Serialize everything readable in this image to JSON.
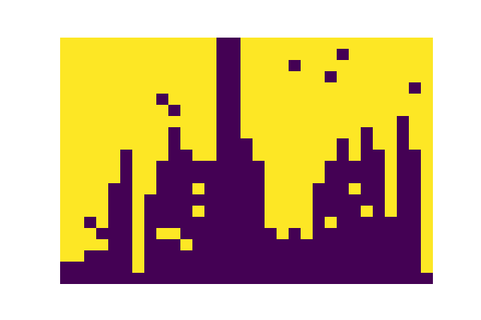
{
  "chart_data": {
    "type": "heatmap",
    "color": "Viridis",
    "tick_labels": false,
    "grid": false,
    "cells": [
      [
        1,
        1,
        1,
        1,
        1,
        1,
        1,
        1,
        1,
        1,
        1,
        1,
        1,
        0,
        0,
        1,
        1,
        1,
        1,
        1,
        1,
        1,
        1,
        1,
        1,
        1,
        1,
        1,
        1,
        1,
        1
      ],
      [
        1,
        1,
        1,
        1,
        1,
        1,
        1,
        1,
        1,
        1,
        1,
        1,
        1,
        0,
        0,
        1,
        1,
        1,
        1,
        1,
        1,
        1,
        1,
        0,
        1,
        1,
        1,
        1,
        1,
        1,
        1
      ],
      [
        1,
        1,
        1,
        1,
        1,
        1,
        1,
        1,
        1,
        1,
        1,
        1,
        1,
        0,
        0,
        1,
        1,
        1,
        1,
        0,
        1,
        1,
        1,
        1,
        1,
        1,
        1,
        1,
        1,
        1,
        1
      ],
      [
        1,
        1,
        1,
        1,
        1,
        1,
        1,
        1,
        1,
        1,
        1,
        1,
        1,
        0,
        0,
        1,
        1,
        1,
        1,
        1,
        1,
        1,
        0,
        1,
        1,
        1,
        1,
        1,
        1,
        1,
        1
      ],
      [
        1,
        1,
        1,
        1,
        1,
        1,
        1,
        1,
        1,
        1,
        1,
        1,
        1,
        0,
        0,
        1,
        1,
        1,
        1,
        1,
        1,
        1,
        1,
        1,
        1,
        1,
        1,
        1,
        1,
        0,
        1
      ],
      [
        1,
        1,
        1,
        1,
        1,
        1,
        1,
        1,
        0,
        1,
        1,
        1,
        1,
        0,
        0,
        1,
        1,
        1,
        1,
        1,
        1,
        1,
        1,
        1,
        1,
        1,
        1,
        1,
        1,
        1,
        1
      ],
      [
        1,
        1,
        1,
        1,
        1,
        1,
        1,
        1,
        1,
        0,
        1,
        1,
        1,
        0,
        0,
        1,
        1,
        1,
        1,
        1,
        1,
        1,
        1,
        1,
        1,
        1,
        1,
        1,
        1,
        1,
        1
      ],
      [
        1,
        1,
        1,
        1,
        1,
        1,
        1,
        1,
        1,
        1,
        1,
        1,
        1,
        0,
        0,
        1,
        1,
        1,
        1,
        1,
        1,
        1,
        1,
        1,
        1,
        1,
        1,
        1,
        0,
        1,
        1
      ],
      [
        1,
        1,
        1,
        1,
        1,
        1,
        1,
        1,
        1,
        0,
        1,
        1,
        1,
        0,
        0,
        1,
        1,
        1,
        1,
        1,
        1,
        1,
        1,
        1,
        1,
        0,
        1,
        1,
        0,
        1,
        1
      ],
      [
        1,
        1,
        1,
        1,
        1,
        1,
        1,
        1,
        1,
        0,
        1,
        1,
        1,
        0,
        0,
        0,
        1,
        1,
        1,
        1,
        1,
        1,
        1,
        0,
        1,
        0,
        1,
        1,
        0,
        1,
        1
      ],
      [
        1,
        1,
        1,
        1,
        1,
        0,
        1,
        1,
        1,
        0,
        0,
        1,
        1,
        0,
        0,
        0,
        1,
        1,
        1,
        1,
        1,
        1,
        1,
        0,
        1,
        0,
        0,
        1,
        0,
        0,
        1
      ],
      [
        1,
        1,
        1,
        1,
        1,
        0,
        1,
        1,
        0,
        0,
        0,
        0,
        0,
        0,
        0,
        0,
        0,
        1,
        1,
        1,
        1,
        1,
        0,
        0,
        0,
        0,
        0,
        1,
        0,
        0,
        1
      ],
      [
        1,
        1,
        1,
        1,
        1,
        0,
        1,
        1,
        0,
        0,
        0,
        0,
        0,
        0,
        0,
        0,
        0,
        1,
        1,
        1,
        1,
        1,
        0,
        0,
        0,
        0,
        0,
        1,
        0,
        0,
        1
      ],
      [
        1,
        1,
        1,
        1,
        0,
        0,
        1,
        1,
        0,
        0,
        0,
        1,
        0,
        0,
        0,
        0,
        0,
        1,
        1,
        1,
        1,
        0,
        0,
        0,
        1,
        0,
        0,
        1,
        0,
        0,
        1
      ],
      [
        1,
        1,
        1,
        1,
        0,
        0,
        1,
        0,
        0,
        0,
        0,
        0,
        0,
        0,
        0,
        0,
        0,
        1,
        1,
        1,
        1,
        0,
        0,
        0,
        0,
        0,
        0,
        1,
        0,
        0,
        1
      ],
      [
        1,
        1,
        1,
        1,
        0,
        0,
        1,
        0,
        0,
        0,
        0,
        1,
        0,
        0,
        0,
        0,
        0,
        1,
        1,
        1,
        1,
        0,
        0,
        0,
        0,
        1,
        0,
        1,
        0,
        0,
        1
      ],
      [
        1,
        1,
        0,
        1,
        0,
        0,
        1,
        0,
        0,
        0,
        0,
        0,
        0,
        0,
        0,
        0,
        0,
        1,
        1,
        1,
        1,
        0,
        1,
        0,
        0,
        0,
        0,
        0,
        0,
        0,
        1
      ],
      [
        1,
        1,
        1,
        0,
        0,
        0,
        1,
        0,
        1,
        1,
        0,
        0,
        0,
        0,
        0,
        0,
        0,
        0,
        1,
        0,
        1,
        0,
        0,
        0,
        0,
        0,
        0,
        0,
        0,
        0,
        1
      ],
      [
        1,
        1,
        1,
        1,
        0,
        0,
        1,
        0,
        0,
        0,
        1,
        0,
        0,
        0,
        0,
        0,
        0,
        0,
        0,
        0,
        0,
        0,
        0,
        0,
        0,
        0,
        0,
        0,
        0,
        0,
        1
      ],
      [
        1,
        1,
        0,
        0,
        0,
        0,
        1,
        0,
        0,
        0,
        0,
        0,
        0,
        0,
        0,
        0,
        0,
        0,
        0,
        0,
        0,
        0,
        0,
        0,
        0,
        0,
        0,
        0,
        0,
        0,
        1
      ],
      [
        0,
        0,
        0,
        0,
        0,
        0,
        1,
        0,
        0,
        0,
        0,
        0,
        0,
        0,
        0,
        0,
        0,
        0,
        0,
        0,
        0,
        0,
        0,
        0,
        0,
        0,
        0,
        0,
        0,
        0,
        1
      ],
      [
        0,
        0,
        0,
        0,
        0,
        0,
        0,
        0,
        0,
        0,
        0,
        0,
        0,
        0,
        0,
        0,
        0,
        0,
        0,
        0,
        0,
        0,
        0,
        0,
        0,
        0,
        0,
        0,
        0,
        0,
        0
      ]
    ]
  }
}
